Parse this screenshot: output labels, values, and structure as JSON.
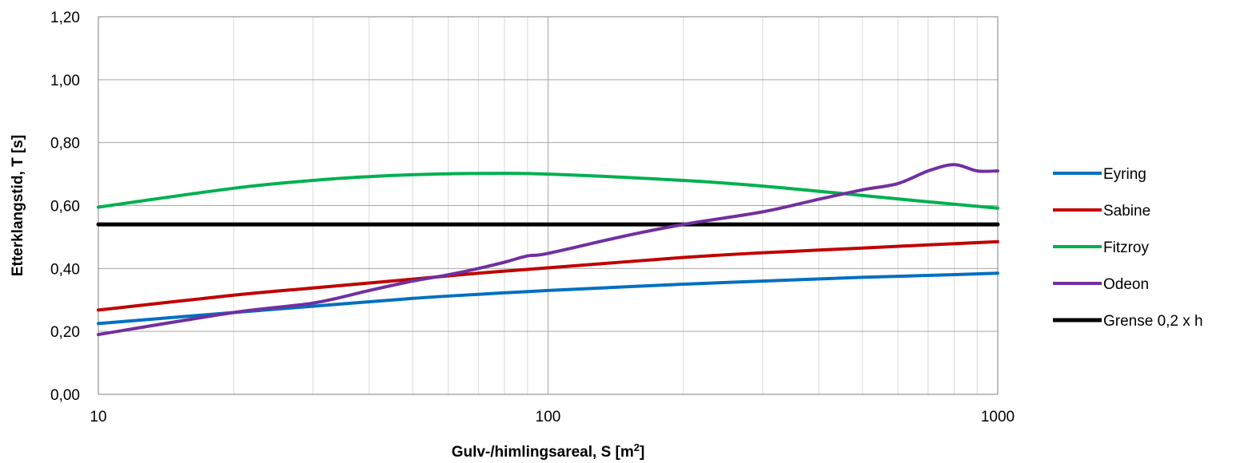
{
  "chart_data": {
    "type": "line",
    "x_scale": "log",
    "xlabel": "Gulv-/himlingsareal, S [m",
    "xlabel_sup": "2",
    "xlabel_end": "]",
    "ylabel": "Etterklangstid, T [s]",
    "xlim": [
      10,
      1000
    ],
    "ylim": [
      0,
      1.2
    ],
    "x_ticks": [
      10,
      100,
      1000
    ],
    "x_tick_labels": [
      "10",
      "100",
      "1000"
    ],
    "y_ticks": [
      0,
      0.2,
      0.4,
      0.6,
      0.8,
      1.0,
      1.2
    ],
    "y_tick_labels": [
      "0,00",
      "0,20",
      "0,40",
      "0,60",
      "0,80",
      "1,00",
      "1,20"
    ],
    "grid": true,
    "legend_position": "right",
    "series": [
      {
        "name": "Eyring",
        "color": "#0070C0",
        "x": [
          10,
          20,
          30,
          50,
          70,
          100,
          200,
          300,
          500,
          700,
          1000
        ],
        "y": [
          0.225,
          0.26,
          0.28,
          0.305,
          0.318,
          0.33,
          0.35,
          0.36,
          0.372,
          0.378,
          0.385
        ]
      },
      {
        "name": "Sabine",
        "color": "#C00000",
        "x": [
          10,
          20,
          30,
          50,
          70,
          100,
          200,
          300,
          500,
          700,
          1000
        ],
        "y": [
          0.268,
          0.315,
          0.338,
          0.366,
          0.385,
          0.402,
          0.435,
          0.45,
          0.465,
          0.475,
          0.485
        ]
      },
      {
        "name": "Fitzroy",
        "color": "#00B050",
        "x": [
          10,
          20,
          30,
          40,
          50,
          70,
          100,
          200,
          300,
          500,
          700,
          1000
        ],
        "y": [
          0.595,
          0.655,
          0.68,
          0.692,
          0.698,
          0.702,
          0.7,
          0.68,
          0.662,
          0.632,
          0.612,
          0.592
        ]
      },
      {
        "name": "Odeon",
        "color": "#7030A0",
        "x": [
          10,
          20,
          30,
          40,
          50,
          60,
          70,
          80,
          90,
          100,
          150,
          200,
          300,
          400,
          500,
          600,
          700,
          800,
          900,
          1000
        ],
        "y": [
          0.19,
          0.26,
          0.29,
          0.33,
          0.36,
          0.38,
          0.4,
          0.42,
          0.44,
          0.448,
          0.505,
          0.54,
          0.58,
          0.62,
          0.65,
          0.67,
          0.71,
          0.73,
          0.71,
          0.71
        ]
      },
      {
        "name": "Grense 0,2 x h",
        "color": "#000000",
        "x": [
          10,
          1000
        ],
        "y": [
          0.54,
          0.54
        ]
      }
    ]
  }
}
